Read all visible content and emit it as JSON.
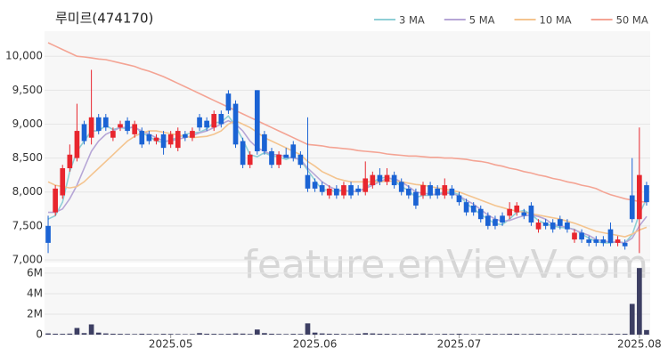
{
  "chart_data": {
    "type": "candlestick",
    "title": "루미르(474170)",
    "watermark": "feature.enVievV.com",
    "categories": [
      null,
      null,
      null,
      null,
      null,
      null,
      null,
      null,
      null,
      null,
      null,
      null,
      null,
      null,
      null,
      null,
      null,
      "2025.05",
      null,
      null,
      null,
      null,
      null,
      null,
      null,
      null,
      null,
      null,
      null,
      null,
      null,
      null,
      null,
      null,
      null,
      null,
      null,
      "2025.06",
      null,
      null,
      null,
      null,
      null,
      null,
      null,
      null,
      null,
      null,
      null,
      null,
      null,
      null,
      null,
      null,
      null,
      null,
      null,
      "2025.07",
      null,
      null,
      null,
      null,
      null,
      null,
      null,
      null,
      null,
      null,
      null,
      null,
      null,
      null,
      null,
      null,
      null,
      null,
      null,
      null,
      null,
      null,
      null,
      null,
      "2025.08",
      null
    ],
    "open": [
      7500,
      7700,
      7950,
      8350,
      8500,
      9000,
      8800,
      9100,
      9100,
      8800,
      8950,
      9050,
      8850,
      8900,
      8850,
      8750,
      8850,
      8700,
      8650,
      8850,
      8800,
      9100,
      9050,
      8950,
      9150,
      9450,
      9300,
      8750,
      8400,
      9500,
      8850,
      8600,
      8400,
      8550,
      8700,
      8550,
      8250,
      8150,
      8100,
      7950,
      8050,
      7950,
      8100,
      8050,
      8000,
      8100,
      8250,
      8150,
      8250,
      8150,
      8050,
      8000,
      7950,
      8100,
      8050,
      7950,
      8050,
      7950,
      7850,
      7800,
      7750,
      7650,
      7600,
      7650,
      7650,
      7700,
      7700,
      7800,
      7450,
      7550,
      7550,
      7600,
      7550,
      7300,
      7400,
      7300,
      7300,
      7300,
      7450,
      7250,
      7250,
      7950,
      7600,
      8100
    ],
    "high": [
      7650,
      8100,
      8400,
      8700,
      9300,
      9050,
      9800,
      9150,
      9150,
      8950,
      9050,
      9100,
      9050,
      8950,
      8900,
      8850,
      8900,
      8900,
      8950,
      8900,
      8950,
      9150,
      9100,
      9200,
      9200,
      9500,
      9350,
      8800,
      8600,
      9500,
      8900,
      8650,
      8600,
      8650,
      8750,
      8600,
      9100,
      8200,
      8150,
      8100,
      8100,
      8150,
      8150,
      8100,
      8450,
      8300,
      8350,
      8350,
      8300,
      8200,
      8100,
      8050,
      8150,
      8150,
      8100,
      8200,
      8100,
      8000,
      7900,
      7850,
      7800,
      7700,
      7650,
      7700,
      7850,
      7850,
      7750,
      7850,
      7600,
      7600,
      7600,
      7650,
      7600,
      7450,
      7450,
      7350,
      7350,
      7350,
      7550,
      7350,
      7300,
      8500,
      8950,
      8150
    ],
    "low": [
      7100,
      7650,
      7900,
      8300,
      8450,
      8700,
      8700,
      8850,
      8900,
      8750,
      8900,
      8850,
      8800,
      8650,
      8700,
      8700,
      8550,
      8650,
      8600,
      8750,
      8750,
      8900,
      8900,
      8900,
      8950,
      9150,
      8650,
      8350,
      8350,
      8550,
      8550,
      8350,
      8350,
      8500,
      8450,
      8350,
      8000,
      8000,
      7950,
      7900,
      7900,
      7900,
      7900,
      7950,
      7950,
      8050,
      8100,
      8100,
      8050,
      7950,
      7900,
      7750,
      7900,
      7900,
      7900,
      7900,
      7900,
      7800,
      7650,
      7650,
      7550,
      7450,
      7450,
      7500,
      7600,
      7650,
      7600,
      7500,
      7400,
      7450,
      7400,
      7450,
      7400,
      7250,
      7250,
      7200,
      7200,
      7200,
      7200,
      7200,
      7150,
      7550,
      7100,
      7800
    ],
    "close": [
      7250,
      8050,
      8350,
      8550,
      8900,
      8750,
      9100,
      8900,
      8950,
      8900,
      9000,
      8900,
      9000,
      8700,
      8750,
      8800,
      8650,
      8850,
      8900,
      8800,
      8900,
      8950,
      8950,
      9150,
      9000,
      9200,
      8700,
      8400,
      8550,
      8600,
      8600,
      8400,
      8550,
      8500,
      8500,
      8400,
      8050,
      8050,
      8000,
      8050,
      7950,
      8100,
      7950,
      8000,
      8200,
      8250,
      8150,
      8250,
      8100,
      8000,
      7950,
      7800,
      8100,
      7950,
      7950,
      8100,
      7950,
      7850,
      7700,
      7700,
      7600,
      7500,
      7500,
      7550,
      7750,
      7800,
      7650,
      7550,
      7550,
      7500,
      7450,
      7500,
      7450,
      7400,
      7300,
      7250,
      7250,
      7250,
      7250,
      7300,
      7200,
      7600,
      8250,
      7850
    ],
    "volume": [
      120000,
      90000,
      80000,
      100000,
      650000,
      150000,
      1000000,
      200000,
      120000,
      90000,
      80000,
      70000,
      60000,
      90000,
      70000,
      60000,
      80000,
      70000,
      60000,
      50000,
      60000,
      150000,
      90000,
      80000,
      70000,
      80000,
      120000,
      100000,
      70000,
      500000,
      150000,
      90000,
      70000,
      60000,
      80000,
      70000,
      1100000,
      200000,
      120000,
      90000,
      80000,
      70000,
      60000,
      90000,
      150000,
      120000,
      90000,
      80000,
      70000,
      60000,
      80000,
      90000,
      110000,
      70000,
      60000,
      80000,
      70000,
      90000,
      60000,
      50000,
      60000,
      80000,
      70000,
      60000,
      90000,
      80000,
      60000,
      70000,
      80000,
      60000,
      50000,
      70000,
      60000,
      80000,
      70000,
      60000,
      50000,
      60000,
      90000,
      70000,
      80000,
      3000000,
      6500000,
      450000
    ],
    "up_color": "#e8262e",
    "down_color": "#1b63d4",
    "volume_color": "#3d3f63",
    "series": [
      {
        "name": "3 MA",
        "color": "#8fcfd6",
        "values": [
          7600,
          7650,
          7850,
          8300,
          8600,
          8750,
          8900,
          8900,
          8980,
          8920,
          8950,
          8930,
          8970,
          8870,
          8820,
          8750,
          8730,
          8770,
          8800,
          8850,
          8870,
          8880,
          8930,
          9020,
          9030,
          9120,
          8970,
          8770,
          8550,
          8520,
          8580,
          8530,
          8520,
          8480,
          8520,
          8470,
          8320,
          8170,
          8030,
          8030,
          8000,
          8030,
          8000,
          8020,
          8050,
          8150,
          8200,
          8220,
          8170,
          8080,
          8020,
          7920,
          7950,
          7950,
          7970,
          8000,
          8000,
          7960,
          7830,
          7750,
          7670,
          7600,
          7530,
          7520,
          7600,
          7700,
          7730,
          7670,
          7580,
          7530,
          7500,
          7480,
          7470,
          7450,
          7380,
          7320,
          7270,
          7250,
          7250,
          7270,
          7250,
          7370,
          7680,
          7900
        ]
      },
      {
        "name": "5 MA",
        "color": "#b6a6d6",
        "values": [
          7700,
          7700,
          7750,
          7900,
          8100,
          8350,
          8600,
          8750,
          8850,
          8900,
          8950,
          8950,
          8950,
          8900,
          8850,
          8800,
          8750,
          8750,
          8780,
          8800,
          8830,
          8870,
          8900,
          8950,
          9000,
          9050,
          9000,
          8900,
          8750,
          8650,
          8600,
          8550,
          8550,
          8520,
          8500,
          8480,
          8350,
          8250,
          8150,
          8080,
          8030,
          8020,
          8010,
          8010,
          8050,
          8100,
          8150,
          8200,
          8200,
          8150,
          8080,
          8000,
          7980,
          7970,
          7960,
          7980,
          7980,
          7940,
          7880,
          7820,
          7740,
          7660,
          7600,
          7570,
          7580,
          7620,
          7650,
          7660,
          7640,
          7600,
          7520,
          7500,
          7480,
          7440,
          7400,
          7360,
          7300,
          7280,
          7260,
          7260,
          7250,
          7320,
          7500,
          7640
        ]
      },
      {
        "name": "10 MA",
        "color": "#f4c48f",
        "values": [
          8150,
          8100,
          8080,
          8060,
          8080,
          8150,
          8250,
          8350,
          8450,
          8550,
          8650,
          8750,
          8820,
          8870,
          8900,
          8900,
          8880,
          8860,
          8840,
          8820,
          8800,
          8810,
          8820,
          8850,
          8900,
          9000,
          9050,
          9000,
          8950,
          8880,
          8800,
          8750,
          8700,
          8650,
          8600,
          8550,
          8450,
          8380,
          8300,
          8250,
          8200,
          8170,
          8150,
          8150,
          8150,
          8150,
          8150,
          8160,
          8160,
          8150,
          8130,
          8110,
          8100,
          8080,
          8060,
          8040,
          8020,
          8000,
          7960,
          7920,
          7880,
          7840,
          7800,
          7770,
          7740,
          7720,
          7700,
          7680,
          7660,
          7640,
          7620,
          7600,
          7570,
          7540,
          7500,
          7460,
          7420,
          7400,
          7380,
          7360,
          7340,
          7380,
          7440,
          7480
        ]
      },
      {
        "name": "50 MA",
        "color": "#f4a494",
        "values": [
          10200,
          10150,
          10100,
          10050,
          10000,
          9990,
          9975,
          9960,
          9950,
          9925,
          9900,
          9875,
          9850,
          9810,
          9780,
          9740,
          9700,
          9650,
          9600,
          9550,
          9500,
          9450,
          9400,
          9350,
          9300,
          9250,
          9200,
          9150,
          9100,
          9050,
          9000,
          8950,
          8900,
          8850,
          8800,
          8750,
          8700,
          8690,
          8680,
          8660,
          8650,
          8640,
          8630,
          8610,
          8600,
          8590,
          8580,
          8560,
          8550,
          8540,
          8530,
          8530,
          8520,
          8510,
          8510,
          8500,
          8500,
          8490,
          8480,
          8460,
          8450,
          8430,
          8400,
          8380,
          8350,
          8330,
          8300,
          8280,
          8250,
          8230,
          8200,
          8180,
          8150,
          8130,
          8100,
          8080,
          8050,
          8000,
          7960,
          7930,
          7900,
          7880,
          7860,
          7850
        ]
      }
    ],
    "ylim": [
      6960,
      10370
    ],
    "yticks": [
      {
        "value": 7000,
        "label": "7,000"
      },
      {
        "value": 7500,
        "label": "7,500"
      },
      {
        "value": 8000,
        "label": "8,000"
      },
      {
        "value": 8500,
        "label": "8,500"
      },
      {
        "value": 9000,
        "label": "9,000"
      },
      {
        "value": 9500,
        "label": "9,500"
      },
      {
        "value": 10000,
        "label": "10,000"
      }
    ],
    "volume_ylim": [
      0,
      6600000
    ],
    "volume_yticks": [
      0,
      {
        "value": 2000000,
        "label": "2M"
      },
      {
        "value": 4000000,
        "label": "4M"
      },
      {
        "value": 6000000,
        "label": "6M"
      }
    ],
    "grid": true
  }
}
